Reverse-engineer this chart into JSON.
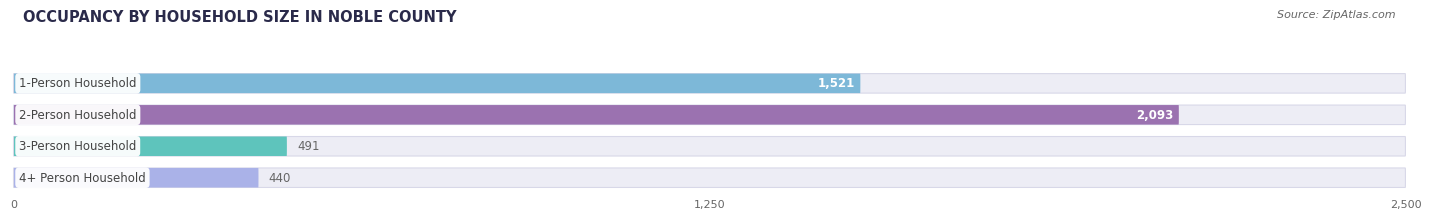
{
  "title": "OCCUPANCY BY HOUSEHOLD SIZE IN NOBLE COUNTY",
  "source": "Source: ZipAtlas.com",
  "categories": [
    "1-Person Household",
    "2-Person Household",
    "3-Person Household",
    "4+ Person Household"
  ],
  "values": [
    1521,
    2093,
    491,
    440
  ],
  "bar_colors": [
    "#7db8d8",
    "#9b72b0",
    "#5ec4bc",
    "#aab2e8"
  ],
  "xlim": [
    0,
    2500
  ],
  "xticks": [
    0,
    1250,
    2500
  ],
  "title_fontsize": 10.5,
  "source_fontsize": 8,
  "bar_label_fontsize": 8.5,
  "category_fontsize": 8.5,
  "background_color": "#ffffff",
  "bar_background_color": "#ededf5",
  "bar_height": 0.62,
  "bar_gap": 0.38
}
